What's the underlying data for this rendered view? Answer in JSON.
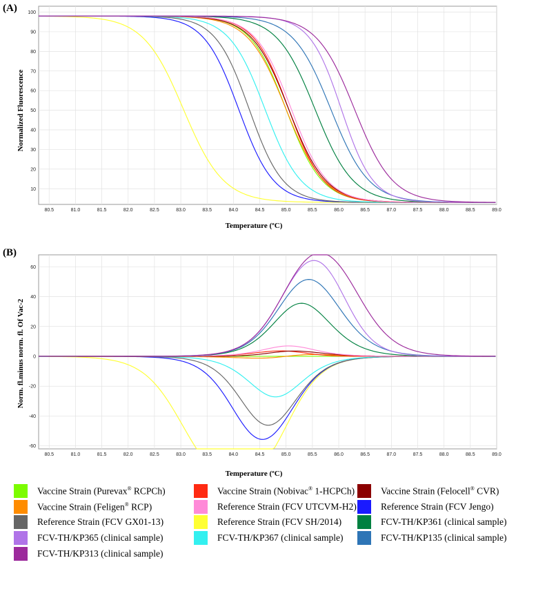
{
  "panels": [
    {
      "id": "A",
      "label": "(A)",
      "chart_data": {
        "type": "line",
        "title": "",
        "xlabel": "Temperature (ºC)",
        "ylabel": "Normalized Fluorescence",
        "xlim": [
          80.3,
          89.0
        ],
        "ylim": [
          2,
          103
        ],
        "xticks": [
          "80.5",
          "81.0",
          "81.5",
          "82.0",
          "82.5",
          "83.0",
          "83.5",
          "84.0",
          "84.5",
          "85.0",
          "85.5",
          "86.0",
          "86.5",
          "87.0",
          "87.5",
          "88.0",
          "88.5",
          "89.0"
        ],
        "yticks": [
          "10",
          "20",
          "30",
          "40",
          "50",
          "60",
          "70",
          "80",
          "90",
          "100"
        ],
        "model": "Normalized melt curves: y = 3 + (98 - 3) / (1 + exp((T - Tm)/w)); Tm and width per strain",
        "series": [
          {
            "name": "Vaccine Strain (Purevax® RCPCh)",
            "color": "#7CFC00",
            "tm": 85.0,
            "w": 0.34
          },
          {
            "name": "Vaccine Strain (Nobivac® 1-HCPCh)",
            "color": "#ff2a12",
            "tm": 85.05,
            "w": 0.33
          },
          {
            "name": "Vaccine Strain (Felocell® CVR)",
            "color": "#8b0000",
            "tm": 85.05,
            "w": 0.35
          },
          {
            "name": "Vaccine Strain (Feligen® RCP)",
            "color": "#ff8c00",
            "tm": 85.0,
            "w": 0.36
          },
          {
            "name": "Reference Strain (FCV UTCVM-H2)",
            "color": "#ff8ad8",
            "tm": 85.1,
            "w": 0.34
          },
          {
            "name": "Reference Strain (FCV Jengo)",
            "color": "#1a1aff",
            "tm": 84.1,
            "w": 0.33
          },
          {
            "name": "Reference Strain (FCV GX01-13)",
            "color": "#666666",
            "tm": 84.3,
            "w": 0.32
          },
          {
            "name": "Reference Strain (FCV SH/2014)",
            "color": "#ffff33",
            "tm": 83.05,
            "w": 0.38
          },
          {
            "name": "FCV-TH/KP361 (clinical sample)",
            "color": "#008040",
            "tm": 85.55,
            "w": 0.36
          },
          {
            "name": "FCV-TH/KP365 (clinical sample)",
            "color": "#b074e8",
            "tm": 86.05,
            "w": 0.3
          },
          {
            "name": "FCV-TH/KP367 (clinical sample)",
            "color": "#33f0f0",
            "tm": 84.6,
            "w": 0.34
          },
          {
            "name": "FCV-TH/KP135 (clinical sample)",
            "color": "#2e75b6",
            "tm": 85.85,
            "w": 0.36
          },
          {
            "name": "FCV-TH/KP313 (clinical sample)",
            "color": "#9c2a9c",
            "tm": 86.3,
            "w": 0.36
          }
        ]
      }
    },
    {
      "id": "B",
      "label": "(B)",
      "chart_data": {
        "type": "line",
        "title": "",
        "xlabel": "Temperature (ºC)",
        "ylabel": "Norm. fl.minus norm. fl. Of Vac-2",
        "xlim": [
          80.3,
          89.0
        ],
        "ylim": [
          -62,
          68
        ],
        "xticks": [
          "80.5",
          "81.0",
          "81.5",
          "82.0",
          "82.5",
          "83.0",
          "83.5",
          "84.0",
          "84.5",
          "85.0",
          "85.5",
          "86.0",
          "86.5",
          "87.0",
          "87.5",
          "88.0",
          "88.5",
          "89.0"
        ],
        "yticks": [
          "60",
          "40",
          "20",
          "0",
          "-20",
          "-40",
          "-60"
        ],
        "model": "Difference curves: each series minus the reference vaccine strain (flat line at 0)",
        "reference_series": "Vaccine Strain (Purevax® RCPCh)"
      }
    }
  ],
  "legend": [
    {
      "label_pre": "Vaccine Strain (Purevax",
      "sup": "®",
      "label_post": " RCPCh)",
      "color": "#7CFC00"
    },
    {
      "label_pre": "Vaccine Strain (Nobivac",
      "sup": "®",
      "label_post": " 1-HCPCh)",
      "color": "#ff2a12"
    },
    {
      "label_pre": "Vaccine Strain (Felocell",
      "sup": "®",
      "label_post": " CVR)",
      "color": "#8b0000"
    },
    {
      "label_pre": "Vaccine Strain (Feligen",
      "sup": "®",
      "label_post": " RCP)",
      "color": "#ff8c00"
    },
    {
      "label_pre": "Reference Strain (FCV UTCVM-H2)",
      "sup": "",
      "label_post": "",
      "color": "#ff8ad8"
    },
    {
      "label_pre": "Reference Strain (FCV Jengo)",
      "sup": "",
      "label_post": "",
      "color": "#1a1aff"
    },
    {
      "label_pre": "Reference Strain (FCV GX01-13)",
      "sup": "",
      "label_post": "",
      "color": "#666666"
    },
    {
      "label_pre": "Reference Strain (FCV SH/2014)",
      "sup": "",
      "label_post": "",
      "color": "#ffff33"
    },
    {
      "label_pre": "FCV-TH/KP361 (clinical sample)",
      "sup": "",
      "label_post": "",
      "color": "#008040"
    },
    {
      "label_pre": "FCV-TH/KP365 (clinical sample)",
      "sup": "",
      "label_post": "",
      "color": "#b074e8"
    },
    {
      "label_pre": "FCV-TH/KP367 (clinical sample)",
      "sup": "",
      "label_post": "",
      "color": "#33f0f0"
    },
    {
      "label_pre": "FCV-TH/KP135 (clinical sample)",
      "sup": "",
      "label_post": "",
      "color": "#2e75b6"
    },
    {
      "label_pre": "FCV-TH/KP313 (clinical sample)",
      "sup": "",
      "label_post": "",
      "color": "#9c2a9c"
    }
  ]
}
